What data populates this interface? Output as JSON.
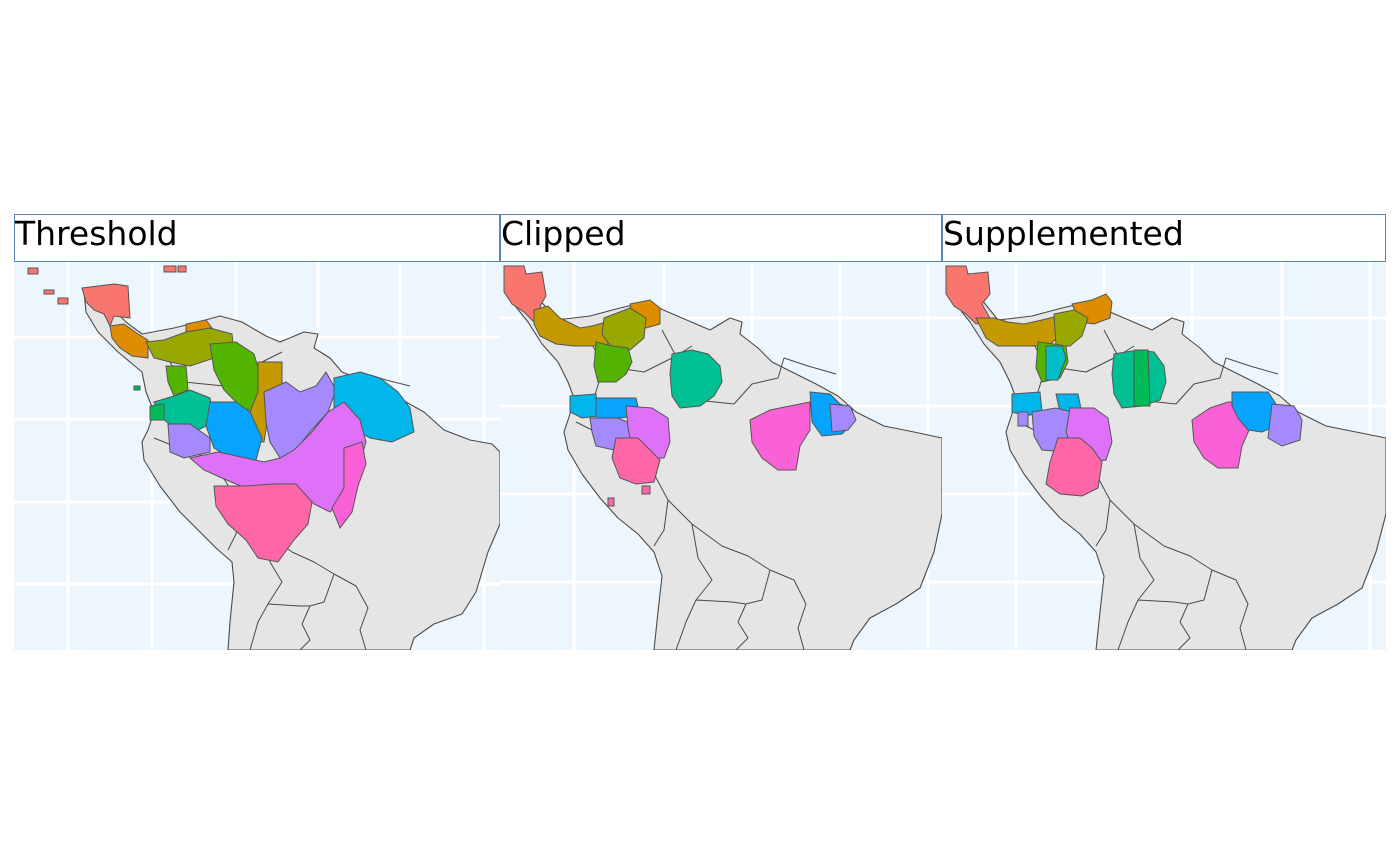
{
  "panels": [
    {
      "title": "Threshold"
    },
    {
      "title": "Clipped"
    },
    {
      "title": "Supplemented"
    }
  ],
  "colors": {
    "background": "#ffffff",
    "strip_border": "#5b86b3",
    "ocean": "#eef6fd",
    "land": "#e5e5e5",
    "land_outline": "#4a4a4a",
    "grid": "#ffffff",
    "palette": [
      "#f8766d",
      "#de8c00",
      "#c49a00",
      "#99a800",
      "#53b400",
      "#00bc56",
      "#00c094",
      "#00bfc4",
      "#00b6eb",
      "#06a4ff",
      "#a58aff",
      "#df70f8",
      "#fb61d7",
      "#ff66a8"
    ]
  }
}
